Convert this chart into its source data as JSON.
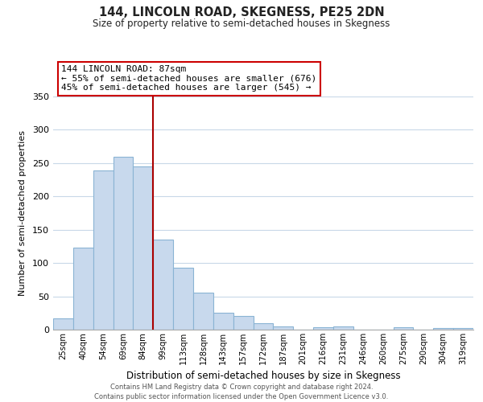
{
  "title": "144, LINCOLN ROAD, SKEGNESS, PE25 2DN",
  "subtitle": "Size of property relative to semi-detached houses in Skegness",
  "xlabel": "Distribution of semi-detached houses by size in Skegness",
  "ylabel": "Number of semi-detached properties",
  "categories": [
    "25sqm",
    "40sqm",
    "54sqm",
    "69sqm",
    "84sqm",
    "99sqm",
    "113sqm",
    "128sqm",
    "143sqm",
    "157sqm",
    "172sqm",
    "187sqm",
    "201sqm",
    "216sqm",
    "231sqm",
    "246sqm",
    "260sqm",
    "275sqm",
    "290sqm",
    "304sqm",
    "319sqm"
  ],
  "values": [
    17,
    123,
    239,
    259,
    245,
    135,
    93,
    56,
    25,
    20,
    10,
    5,
    0,
    4,
    5,
    0,
    0,
    4,
    0,
    2,
    2
  ],
  "bar_color": "#c8d9ed",
  "bar_edge_color": "#8ab4d4",
  "highlight_index": 4,
  "highlight_line_color": "#aa0000",
  "annotation_title": "144 LINCOLN ROAD: 87sqm",
  "annotation_line1": "← 55% of semi-detached houses are smaller (676)",
  "annotation_line2": "45% of semi-detached houses are larger (545) →",
  "ylim": [
    0,
    350
  ],
  "yticks": [
    0,
    50,
    100,
    150,
    200,
    250,
    300,
    350
  ],
  "footer1": "Contains HM Land Registry data © Crown copyright and database right 2024.",
  "footer2": "Contains public sector information licensed under the Open Government Licence v3.0.",
  "background_color": "#ffffff",
  "grid_color": "#c8d8e8"
}
